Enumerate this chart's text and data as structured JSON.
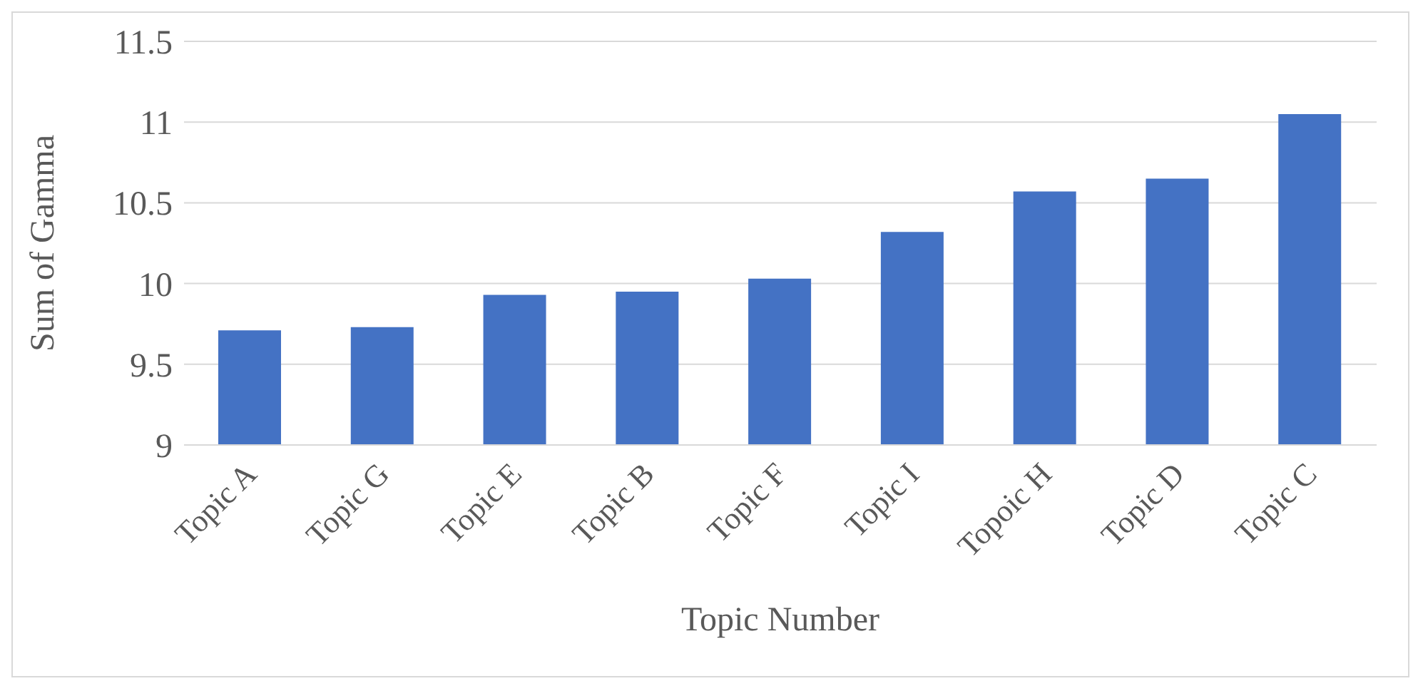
{
  "chart_data": {
    "type": "bar",
    "xlabel": "Topic Number",
    "ylabel": "Sum of Gamma",
    "categories": [
      "Topic A",
      "Topic G",
      "Topic E",
      "Topic B",
      "Topic F",
      "Topic I",
      "Topoic H",
      "Topic D",
      "Topic C"
    ],
    "values": [
      9.71,
      9.73,
      9.93,
      9.95,
      10.03,
      10.32,
      10.57,
      10.65,
      11.05
    ],
    "color": "#4472c4",
    "ylim": [
      9,
      11.5
    ],
    "yticks": [
      9,
      9.5,
      10,
      10.5,
      11,
      11.5
    ],
    "grid": "y"
  }
}
